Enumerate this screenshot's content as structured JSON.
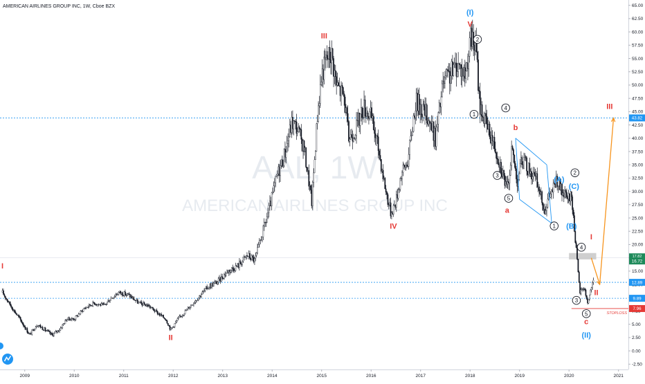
{
  "header": {
    "symbol_line": "AMERICAN AIRLINES GROUP INC, 1W, Cboe BZX"
  },
  "watermark": {
    "ticker": "AAL, 1W",
    "company": "AMERICAN AIRLINES GROUP INC"
  },
  "chart_data": {
    "type": "candlestick",
    "interval": "1W",
    "xlim": [
      2008.5,
      2021.2
    ],
    "ylim": [
      -3.5,
      66
    ],
    "x_ticks": [
      "2009",
      "2010",
      "2011",
      "2012",
      "2013",
      "2014",
      "2015",
      "2016",
      "2017",
      "2018",
      "2019",
      "2020",
      "2021"
    ],
    "y_ticks": [
      "65.00",
      "62.50",
      "60.00",
      "57.50",
      "55.00",
      "52.50",
      "50.00",
      "47.50",
      "45.00",
      "42.50",
      "40.00",
      "37.50",
      "35.00",
      "32.50",
      "30.00",
      "27.50",
      "25.00",
      "22.50",
      "20.00",
      "17.50",
      "15.00",
      "12.50",
      "10.00",
      "7.50",
      "5.00",
      "2.50",
      "0.00",
      "-2.50"
    ],
    "price_path": [
      [
        2008.55,
        11.0
      ],
      [
        2008.75,
        8.0
      ],
      [
        2008.9,
        6.0
      ],
      [
        2009.1,
        3.0
      ],
      [
        2009.25,
        5.0
      ],
      [
        2009.4,
        4.0
      ],
      [
        2009.55,
        3.0
      ],
      [
        2009.7,
        4.0
      ],
      [
        2009.85,
        6.0
      ],
      [
        2010.0,
        6.0
      ],
      [
        2010.2,
        8.0
      ],
      [
        2010.4,
        9.0
      ],
      [
        2010.6,
        8.5
      ],
      [
        2010.75,
        10.0
      ],
      [
        2010.9,
        11.0
      ],
      [
        2011.1,
        10.5
      ],
      [
        2011.3,
        9.0
      ],
      [
        2011.5,
        8.5
      ],
      [
        2011.7,
        7.0
      ],
      [
        2011.85,
        6.0
      ],
      [
        2011.95,
        4.0
      ],
      [
        2012.1,
        6.0
      ],
      [
        2012.3,
        8.0
      ],
      [
        2012.5,
        10.0
      ],
      [
        2012.7,
        12.0
      ],
      [
        2012.9,
        13.0
      ],
      [
        2013.1,
        15.0
      ],
      [
        2013.3,
        16.0
      ],
      [
        2013.5,
        18.0
      ],
      [
        2013.65,
        17.0
      ],
      [
        2013.8,
        22.0
      ],
      [
        2013.95,
        27.0
      ],
      [
        2014.1,
        33.0
      ],
      [
        2014.25,
        37.0
      ],
      [
        2014.4,
        43.0
      ],
      [
        2014.5,
        42.0
      ],
      [
        2014.65,
        38.0
      ],
      [
        2014.8,
        28.0
      ],
      [
        2014.92,
        45.0
      ],
      [
        2015.0,
        52.0
      ],
      [
        2015.1,
        55.0
      ],
      [
        2015.2,
        56.0
      ],
      [
        2015.3,
        50.0
      ],
      [
        2015.45,
        48.0
      ],
      [
        2015.55,
        40.0
      ],
      [
        2015.7,
        42.0
      ],
      [
        2015.85,
        46.0
      ],
      [
        2016.0,
        44.0
      ],
      [
        2016.15,
        38.0
      ],
      [
        2016.3,
        30.0
      ],
      [
        2016.4,
        26.0
      ],
      [
        2016.5,
        28.0
      ],
      [
        2016.6,
        33.0
      ],
      [
        2016.75,
        36.0
      ],
      [
        2016.9,
        47.0
      ],
      [
        2017.0,
        46.0
      ],
      [
        2017.15,
        44.0
      ],
      [
        2017.3,
        40.0
      ],
      [
        2017.45,
        50.0
      ],
      [
        2017.6,
        52.0
      ],
      [
        2017.75,
        54.0
      ],
      [
        2017.9,
        52.0
      ],
      [
        2018.02,
        59.0
      ],
      [
        2018.12,
        57.0
      ],
      [
        2018.2,
        46.0
      ],
      [
        2018.35,
        42.0
      ],
      [
        2018.45,
        40.0
      ],
      [
        2018.55,
        37.0
      ],
      [
        2018.65,
        34.0
      ],
      [
        2018.75,
        30.0
      ],
      [
        2018.85,
        38.0
      ],
      [
        2018.95,
        32.0
      ],
      [
        2019.05,
        36.0
      ],
      [
        2019.2,
        34.0
      ],
      [
        2019.35,
        32.0
      ],
      [
        2019.5,
        26.5
      ],
      [
        2019.6,
        29.0
      ],
      [
        2019.75,
        32.0
      ],
      [
        2019.85,
        30.0
      ],
      [
        2019.95,
        28.5
      ],
      [
        2020.05,
        29.0
      ],
      [
        2020.12,
        22.0
      ],
      [
        2020.18,
        15.0
      ],
      [
        2020.22,
        11.0
      ],
      [
        2020.3,
        12.0
      ],
      [
        2020.38,
        9.0
      ],
      [
        2020.45,
        12.0
      ],
      [
        2020.5,
        13.0
      ]
    ],
    "title": "AMERICAN AIRLINES GROUP INC, 1W, Cboe BZX",
    "xlabel": "",
    "ylabel": "",
    "grid": false,
    "horizontal_levels": [
      {
        "value": 43.82,
        "label": "43.82",
        "style": "dotted",
        "color": "#2196f3"
      },
      {
        "value": 12.89,
        "label": "12.89",
        "style": "dotted",
        "color": "#2196f3"
      },
      {
        "value": 9.89,
        "label": "9.89",
        "style": "dotted",
        "color": "#2196f3"
      },
      {
        "value": 7.96,
        "label": "7.96",
        "style": "solid",
        "color": "#e53935"
      }
    ],
    "price_badges": [
      {
        "value": 17.82,
        "top": "17.82",
        "bottom": "16.72",
        "color": "#1e8a5a"
      }
    ],
    "stoploss": {
      "value": 7.96,
      "label": "STOPLOSS"
    },
    "wave_labels": [
      {
        "text": "I",
        "x": 2008.55,
        "y": 15.5,
        "color": "#e53935",
        "style": "roman"
      },
      {
        "text": "II",
        "x": 2011.95,
        "y": 2.0,
        "color": "#e53935",
        "style": "roman"
      },
      {
        "text": "III",
        "x": 2015.05,
        "y": 58.8,
        "color": "#e53935",
        "style": "roman"
      },
      {
        "text": "IV",
        "x": 2016.45,
        "y": 23.0,
        "color": "#e53935",
        "style": "roman"
      },
      {
        "text": "V",
        "x": 2018.0,
        "y": 61.0,
        "color": "#e53935",
        "style": "roman"
      },
      {
        "text": "(I)",
        "x": 2018.0,
        "y": 63.2,
        "color": "#2196f3",
        "style": "blue"
      },
      {
        "text": "a",
        "x": 2018.75,
        "y": 26.0,
        "color": "#e53935",
        "style": "letter"
      },
      {
        "text": "b",
        "x": 2018.92,
        "y": 41.5,
        "color": "#e53935",
        "style": "letter"
      },
      {
        "text": "c",
        "x": 2020.35,
        "y": 5.0,
        "color": "#e53935",
        "style": "letter"
      },
      {
        "text": "(A)",
        "x": 2019.8,
        "y": 31.8,
        "color": "#2196f3",
        "style": "blue"
      },
      {
        "text": "(B)",
        "x": 2020.05,
        "y": 23.0,
        "color": "#2196f3",
        "style": "blue"
      },
      {
        "text": "(C)",
        "x": 2020.1,
        "y": 30.5,
        "color": "#2196f3",
        "style": "blue"
      },
      {
        "text": "(II)",
        "x": 2020.35,
        "y": 2.5,
        "color": "#2196f3",
        "style": "blue"
      },
      {
        "text": "I",
        "x": 2020.45,
        "y": 21.0,
        "color": "#e53935",
        "style": "roman"
      },
      {
        "text": "II",
        "x": 2020.55,
        "y": 10.5,
        "color": "#e53935",
        "style": "roman"
      },
      {
        "text": "III",
        "x": 2020.82,
        "y": 45.5,
        "color": "#e53935",
        "style": "roman"
      }
    ],
    "circle_labels": [
      {
        "text": "2",
        "x": 2018.15,
        "y": 58.6
      },
      {
        "text": "1",
        "x": 2018.08,
        "y": 44.5
      },
      {
        "text": "4",
        "x": 2018.72,
        "y": 45.7
      },
      {
        "text": "3",
        "x": 2018.55,
        "y": 33.0
      },
      {
        "text": "5",
        "x": 2018.78,
        "y": 28.7
      },
      {
        "text": "1",
        "x": 2019.7,
        "y": 23.5
      },
      {
        "text": "2",
        "x": 2020.12,
        "y": 33.5
      },
      {
        "text": "4",
        "x": 2020.25,
        "y": 19.5
      },
      {
        "text": "3",
        "x": 2020.15,
        "y": 9.5
      },
      {
        "text": "5",
        "x": 2020.35,
        "y": 7.0
      }
    ],
    "channel": {
      "upper": [
        [
          2018.92,
          40.0
        ],
        [
          2019.55,
          35.0
        ]
      ],
      "lower": [
        [
          2019.0,
          28.5
        ],
        [
          2019.65,
          24.0
        ]
      ],
      "color": "#2196f3"
    },
    "projection": {
      "path": [
        [
          2020.45,
          17.5
        ],
        [
          2020.62,
          12.5
        ],
        [
          2020.9,
          43.8
        ]
      ],
      "color": "#f7941d"
    },
    "resistance_zone": {
      "y_low": 17.2,
      "y_high": 18.4,
      "x_start": 2020.0,
      "x_end": 2020.55
    }
  }
}
